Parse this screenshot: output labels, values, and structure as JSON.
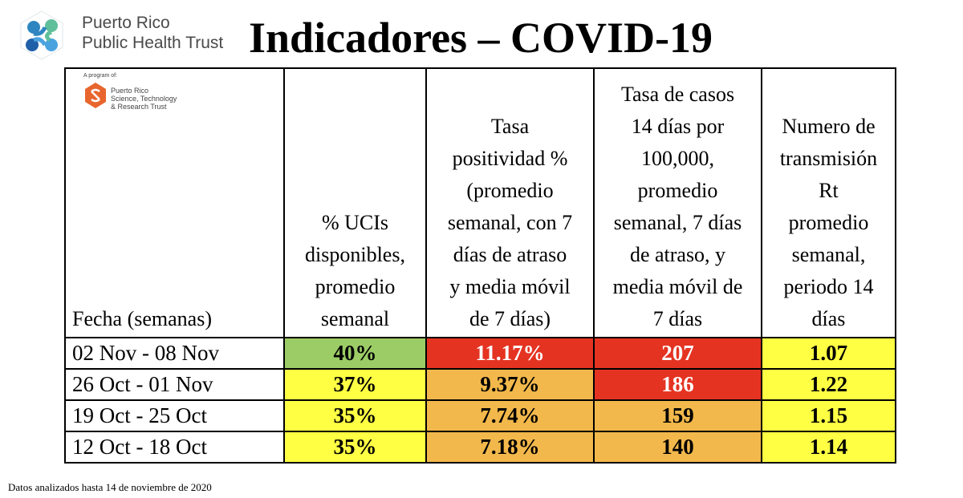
{
  "header": {
    "org_line1": "Puerto Rico",
    "org_line2": "Public Health Trust",
    "title": "Indicadores – COVID-19"
  },
  "sub_logo": {
    "program_text": "A program of:",
    "name_line1": "Puerto Rico",
    "name_line2": "Science, Technology",
    "name_line3": "& Research Trust"
  },
  "colors": {
    "green": "#9ccc65",
    "red": "#e53322",
    "orange": "#f2b84b",
    "yellow": "#ffff44"
  },
  "table": {
    "headers": [
      [
        "Fecha (semanas)"
      ],
      [
        "% UCIs",
        "disponibles,",
        "promedio",
        "semanal"
      ],
      [
        "Tasa",
        "positividad %",
        "(promedio",
        "semanal, con 7",
        "días de atraso",
        "y media móvil",
        "de 7 días)"
      ],
      [
        "Tasa de casos",
        "14 días por",
        "100,000,",
        "promedio",
        "semanal, 7 días",
        "de atraso, y",
        "media móvil de",
        "7 días"
      ],
      [
        "Numero de",
        "transmisión",
        "Rt",
        "promedio",
        "semanal,",
        "periodo 14",
        "días"
      ]
    ],
    "rows": [
      {
        "date": "02 Nov - 08 Nov",
        "uci": "40%",
        "pos": "11.17%",
        "casos": "207",
        "rt": "1.07"
      },
      {
        "date": "26 Oct - 01 Nov",
        "uci": "37%",
        "pos": "9.37%",
        "casos": "186",
        "rt": "1.22"
      },
      {
        "date": "19 Oct - 25 Oct",
        "uci": "35%",
        "pos": "7.74%",
        "casos": "159",
        "rt": "1.15"
      },
      {
        "date": "12 Oct - 18 Oct",
        "uci": "35%",
        "pos": "7.18%",
        "casos": "140",
        "rt": "1.14"
      }
    ],
    "cell_colors": [
      [
        "green",
        "red",
        "red",
        "yellow"
      ],
      [
        "yellow",
        "orange",
        "red",
        "yellow"
      ],
      [
        "yellow",
        "orange",
        "orange",
        "yellow"
      ],
      [
        "yellow",
        "orange",
        "orange",
        "yellow"
      ]
    ]
  },
  "footer": "Datos analizados hasta 14 de noviembre de 2020"
}
